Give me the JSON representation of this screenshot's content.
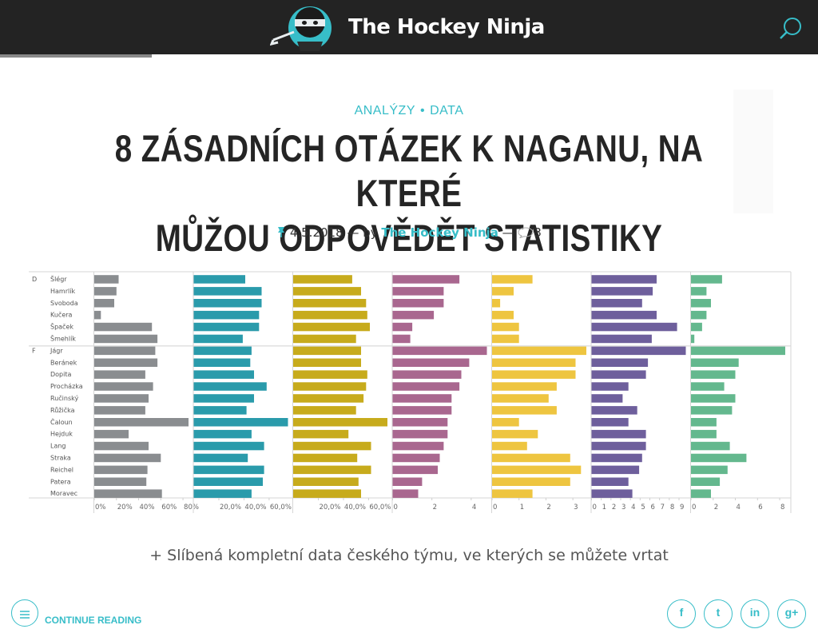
{
  "header": {
    "site_name": "The Hockey Ninja",
    "logo_icon": "hockey-ninja-mascot-icon",
    "search_icon": "search-icon"
  },
  "article": {
    "categories": [
      "ANALÝZY",
      "DATA"
    ],
    "category_separator": "•",
    "title_line1": "8 ZÁSADNÍCH OTÁZEK K NAGANU, NA KTERÉ",
    "title_line2": "MŮŽOU ODPOVĚDĚT STATISTIKY",
    "date": "4.5.2018",
    "dash1": "—",
    "by": "by",
    "author": "The Hockey Ninja",
    "dash2": "—",
    "comments": "3",
    "caption": "+ Slíbená kompletní data českého týmu, ve kterých se můžete vrtat"
  },
  "footer": {
    "continue_label": "CONTINUE READING",
    "share_icons": [
      "facebook-icon",
      "twitter-icon",
      "linkedin-icon",
      "google-plus-icon"
    ],
    "share_glyphs": [
      "f",
      "t",
      "in",
      "g+"
    ]
  },
  "colors": {
    "accent": "#37bdc8",
    "topbar": "#232323"
  },
  "chart_data": {
    "type": "bar",
    "groups": [
      {
        "label": "D",
        "players": [
          "Šlégr",
          "Hamrlík",
          "Svoboda",
          "Kučera",
          "Špaček",
          "Šmehlík"
        ]
      },
      {
        "label": "F",
        "players": [
          "Jágr",
          "Beránek",
          "Dopita",
          "Procházka",
          "Ručinský",
          "Růžička",
          "Čaloun",
          "Hejduk",
          "Lang",
          "Straka",
          "Reichel",
          "Patera",
          "Moravec"
        ]
      }
    ],
    "categories": [
      "Šlégr",
      "Hamrlík",
      "Svoboda",
      "Kučera",
      "Špaček",
      "Šmehlík",
      "Jágr",
      "Beránek",
      "Dopita",
      "Procházka",
      "Ručinský",
      "Růžička",
      "Čaloun",
      "Hejduk",
      "Lang",
      "Straka",
      "Reichel",
      "Patera",
      "Moravec"
    ],
    "series": [
      {
        "color": "#8a8d90",
        "max": 85,
        "ticks": [
          "0%",
          "20%",
          "40%",
          "60%",
          "80%"
        ],
        "tick_values": [
          0,
          20,
          40,
          60,
          80
        ],
        "values": [
          22,
          20,
          18,
          6,
          52,
          57,
          55,
          57,
          46,
          53,
          49,
          46,
          85,
          31,
          49,
          60,
          48,
          47,
          61
        ]
      },
      {
        "color": "#2a9bab",
        "max": 75,
        "ticks": [
          "20,0%",
          "40,0%",
          "60,0%"
        ],
        "tick_values": [
          20,
          40,
          60
        ],
        "values": [
          41,
          54,
          54,
          52,
          52,
          39,
          46,
          45,
          48,
          58,
          48,
          42,
          75,
          46,
          56,
          43,
          56,
          55,
          46
        ]
      },
      {
        "color": "#c7ab1c",
        "max": 75,
        "ticks": [
          "20,0%",
          "40,0%",
          "60,0%"
        ],
        "tick_values": [
          20,
          40,
          60
        ],
        "values": [
          47,
          54,
          58,
          59,
          61,
          50,
          54,
          54,
          59,
          58,
          56,
          50,
          75,
          44,
          62,
          51,
          62,
          52,
          54
        ]
      },
      {
        "color": "#a9678f",
        "max": 4.8,
        "ticks": [
          "0",
          "2",
          "4"
        ],
        "tick_values": [
          0,
          2,
          4
        ],
        "values": [
          3.4,
          2.6,
          2.6,
          2.1,
          1.0,
          0.9,
          4.8,
          3.9,
          3.5,
          3.4,
          3.0,
          3.0,
          2.8,
          2.8,
          2.6,
          2.4,
          2.3,
          1.5,
          1.3
        ]
      },
      {
        "color": "#eec540",
        "max": 3.5,
        "ticks": [
          "0",
          "1",
          "2",
          "3"
        ],
        "tick_values": [
          0,
          1,
          2,
          3
        ],
        "values": [
          1.5,
          0.8,
          0.3,
          0.8,
          1.0,
          1.0,
          3.5,
          3.1,
          3.1,
          2.4,
          2.1,
          2.4,
          1.0,
          1.7,
          1.3,
          2.9,
          3.3,
          2.9,
          1.5
        ]
      },
      {
        "color": "#6e5f9c",
        "max": 9.7,
        "ticks": [
          "0",
          "1",
          "2",
          "3",
          "4",
          "5",
          "6",
          "7",
          "8",
          "9"
        ],
        "tick_values": [
          0,
          1,
          2,
          3,
          4,
          5,
          6,
          7,
          8,
          9
        ],
        "values": [
          6.7,
          6.3,
          5.2,
          6.7,
          8.8,
          6.2,
          9.7,
          5.8,
          5.6,
          3.8,
          3.2,
          4.7,
          3.8,
          5.6,
          5.6,
          5.2,
          4.9,
          3.8,
          4.2
        ]
      },
      {
        "color": "#64b88e",
        "max": 8.5,
        "ticks": [
          "0",
          "2",
          "4",
          "6",
          "8"
        ],
        "tick_values": [
          0,
          2,
          4,
          6,
          8
        ],
        "values": [
          2.8,
          1.4,
          1.8,
          1.4,
          1.0,
          0.3,
          8.5,
          4.3,
          4.0,
          3.0,
          4.0,
          3.7,
          2.3,
          2.3,
          3.5,
          5.0,
          3.3,
          2.6,
          1.8
        ]
      }
    ]
  }
}
